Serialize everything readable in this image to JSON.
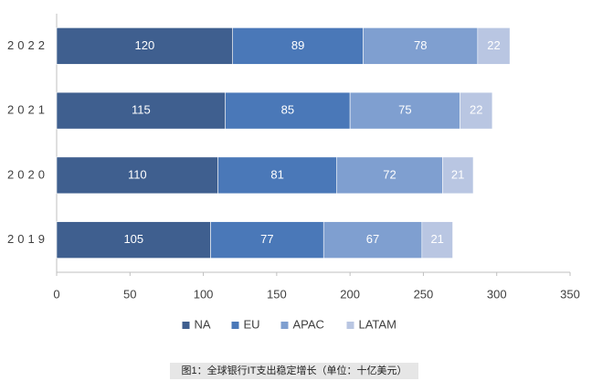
{
  "chart_data": {
    "type": "bar",
    "orientation": "horizontal",
    "stacked": true,
    "categories": [
      "2022",
      "2021",
      "2020",
      "2019"
    ],
    "series": [
      {
        "name": "NA",
        "color": "#3f5f8f",
        "values": [
          120,
          115,
          110,
          105
        ]
      },
      {
        "name": "EU",
        "color": "#4a78b8",
        "values": [
          89,
          85,
          81,
          77
        ]
      },
      {
        "name": "APAC",
        "color": "#7f9fd0",
        "values": [
          78,
          75,
          72,
          67
        ]
      },
      {
        "name": "LATAM",
        "color": "#b9c6e2",
        "values": [
          22,
          22,
          21,
          21
        ]
      }
    ],
    "xlim": [
      0,
      350
    ],
    "xticks": [
      0,
      50,
      100,
      150,
      200,
      250,
      300,
      350
    ],
    "legend": "bottom",
    "caption": "图1：全球银行IT支出稳定增长（单位：十亿美元）"
  }
}
